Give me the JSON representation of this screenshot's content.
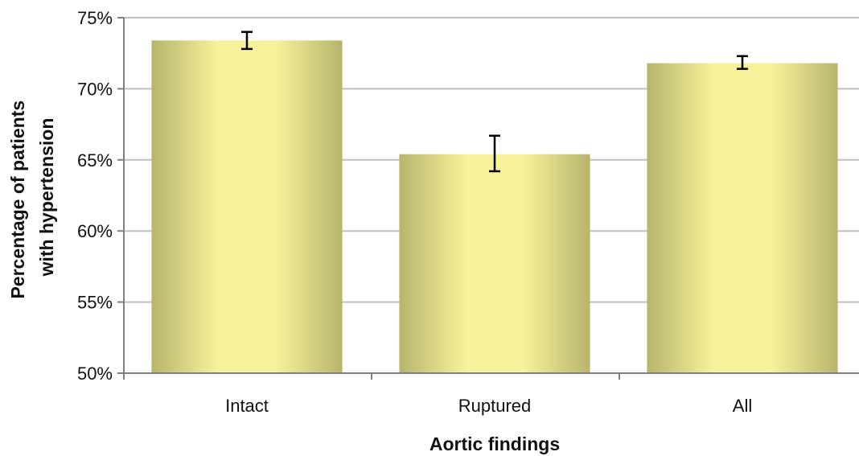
{
  "chart_data": {
    "type": "bar",
    "title": "",
    "xlabel": "Aortic findings",
    "ylabel_lines": [
      "Percentage of patients",
      "with hypertension"
    ],
    "categories": [
      "Intact",
      "Ruptured",
      "All"
    ],
    "values": [
      73.4,
      65.4,
      71.8
    ],
    "error_low": [
      72.8,
      64.2,
      71.4
    ],
    "error_high": [
      74.0,
      66.7,
      72.3
    ],
    "ylim": [
      50,
      75
    ],
    "yticks": [
      50,
      55,
      60,
      65,
      70,
      75
    ],
    "ytick_labels": [
      "50%",
      "55%",
      "60%",
      "65%",
      "70%",
      "75%"
    ],
    "grid": true,
    "legend": "none",
    "colors": {
      "bar_edge": "#b8b46c",
      "bar_center": "#f6f29a",
      "grid": "#bfbfbf",
      "axis": "#808080",
      "error_bar": "#000000"
    }
  }
}
